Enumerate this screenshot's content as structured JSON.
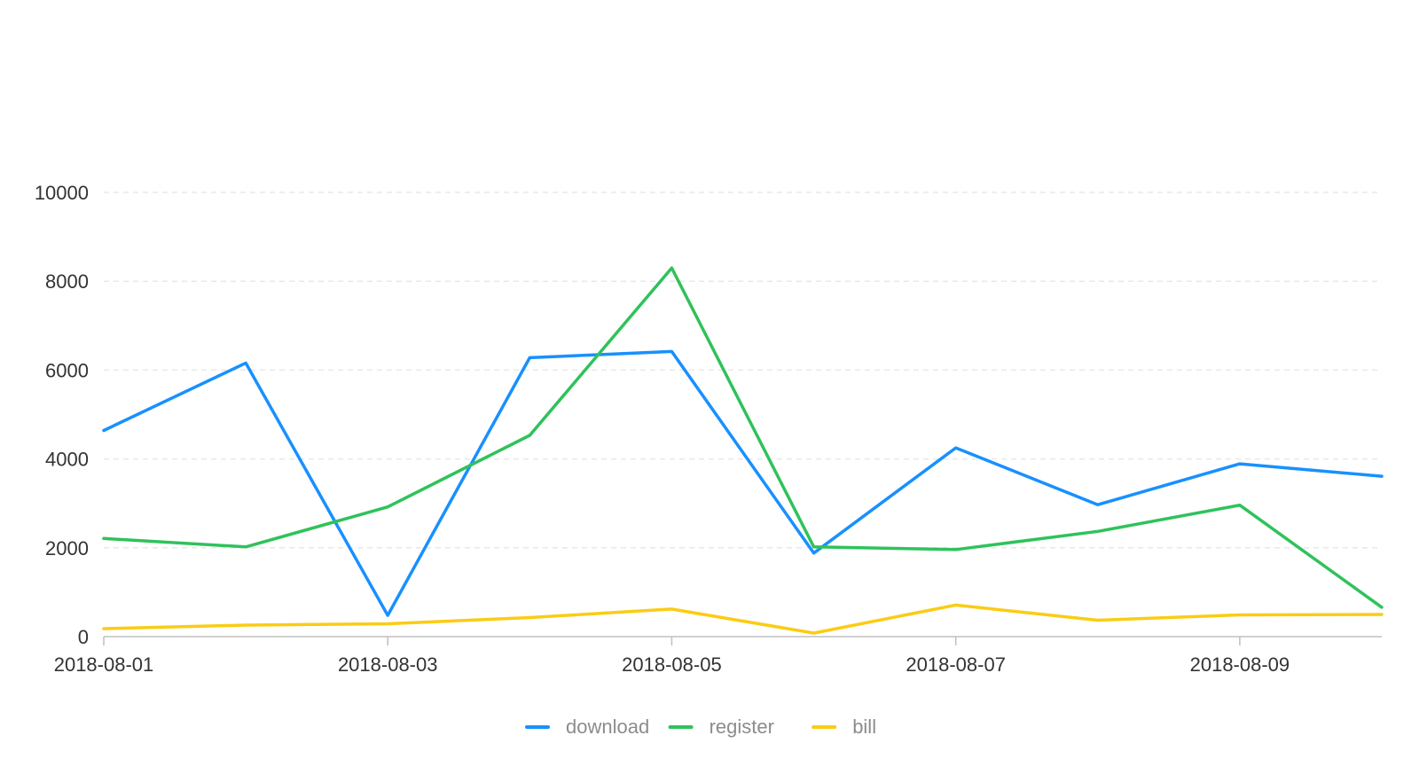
{
  "chart_data": {
    "type": "line",
    "title": "",
    "xlabel": "",
    "ylabel": "",
    "x": [
      "2018-08-01",
      "2018-08-02",
      "2018-08-03",
      "2018-08-04",
      "2018-08-05",
      "2018-08-06",
      "2018-08-07",
      "2018-08-08",
      "2018-08-09",
      "2018-08-10"
    ],
    "x_tick_labels": [
      "2018-08-01",
      "2018-08-03",
      "2018-08-05",
      "2018-08-07",
      "2018-08-09"
    ],
    "y_ticks": [
      0,
      2000,
      4000,
      6000,
      8000,
      10000
    ],
    "ylim": [
      0,
      10000
    ],
    "grid": "horizontal-dashed",
    "legend_position": "bottom-center",
    "series": [
      {
        "name": "download",
        "color": "#1890ff",
        "values": [
          4640,
          6160,
          480,
          6280,
          6420,
          1880,
          4250,
          2970,
          3890,
          3610
        ]
      },
      {
        "name": "register",
        "color": "#2fc25b",
        "values": [
          2210,
          2020,
          2920,
          4530,
          8300,
          2020,
          1960,
          2370,
          2960,
          660
        ]
      },
      {
        "name": "bill",
        "color": "#facc14",
        "values": [
          180,
          260,
          290,
          430,
          620,
          80,
          710,
          370,
          490,
          500
        ]
      }
    ]
  }
}
